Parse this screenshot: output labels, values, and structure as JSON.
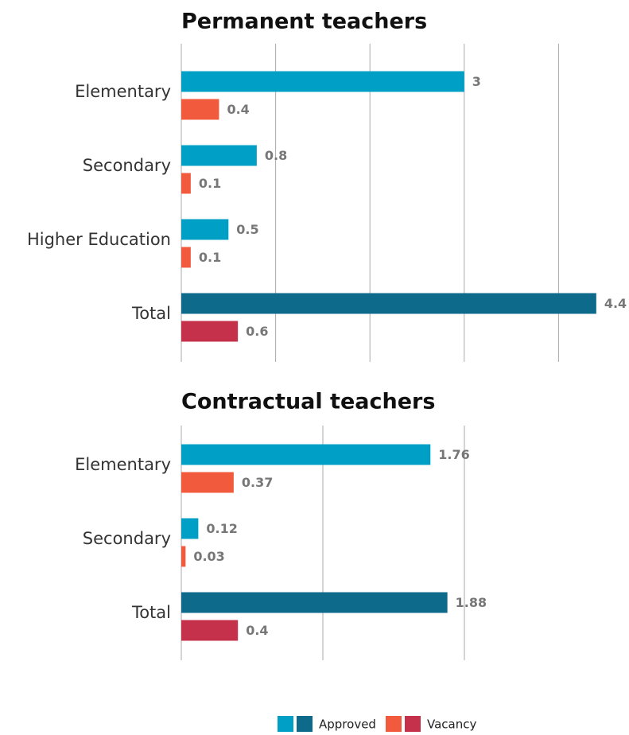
{
  "chart_data": [
    {
      "type": "barh",
      "title": "Permanent teachers",
      "categories": [
        "Elementary",
        "Secondary",
        "Higher Education",
        "Total"
      ],
      "series": [
        {
          "name": "Approved",
          "colors": [
            "#00a0c6",
            "#00a0c6",
            "#00a0c6",
            "#0e6a8a"
          ],
          "values": [
            3,
            0.8,
            0.5,
            4.4
          ]
        },
        {
          "name": "Vacancy",
          "colors": [
            "#f15a3c",
            "#f15a3c",
            "#f15a3c",
            "#c5304a"
          ],
          "values": [
            0.4,
            0.1,
            0.1,
            0.6
          ]
        }
      ],
      "xlim": [
        0,
        4.4
      ],
      "xticks": [
        0,
        1,
        2,
        3,
        4
      ],
      "grid": true
    },
    {
      "type": "barh",
      "title": "Contractual teachers",
      "categories": [
        "Elementary",
        "Secondary",
        "Total"
      ],
      "series": [
        {
          "name": "Approved",
          "colors": [
            "#00a0c6",
            "#00a0c6",
            "#0e6a8a"
          ],
          "values": [
            1.76,
            0.12,
            1.88
          ]
        },
        {
          "name": "Vacancy",
          "colors": [
            "#f15a3c",
            "#f15a3c",
            "#c5304a"
          ],
          "values": [
            0.37,
            0.03,
            0.4
          ]
        }
      ],
      "xlim": [
        0,
        2
      ],
      "xticks": [
        0,
        1,
        2
      ],
      "grid": true
    }
  ]
}
